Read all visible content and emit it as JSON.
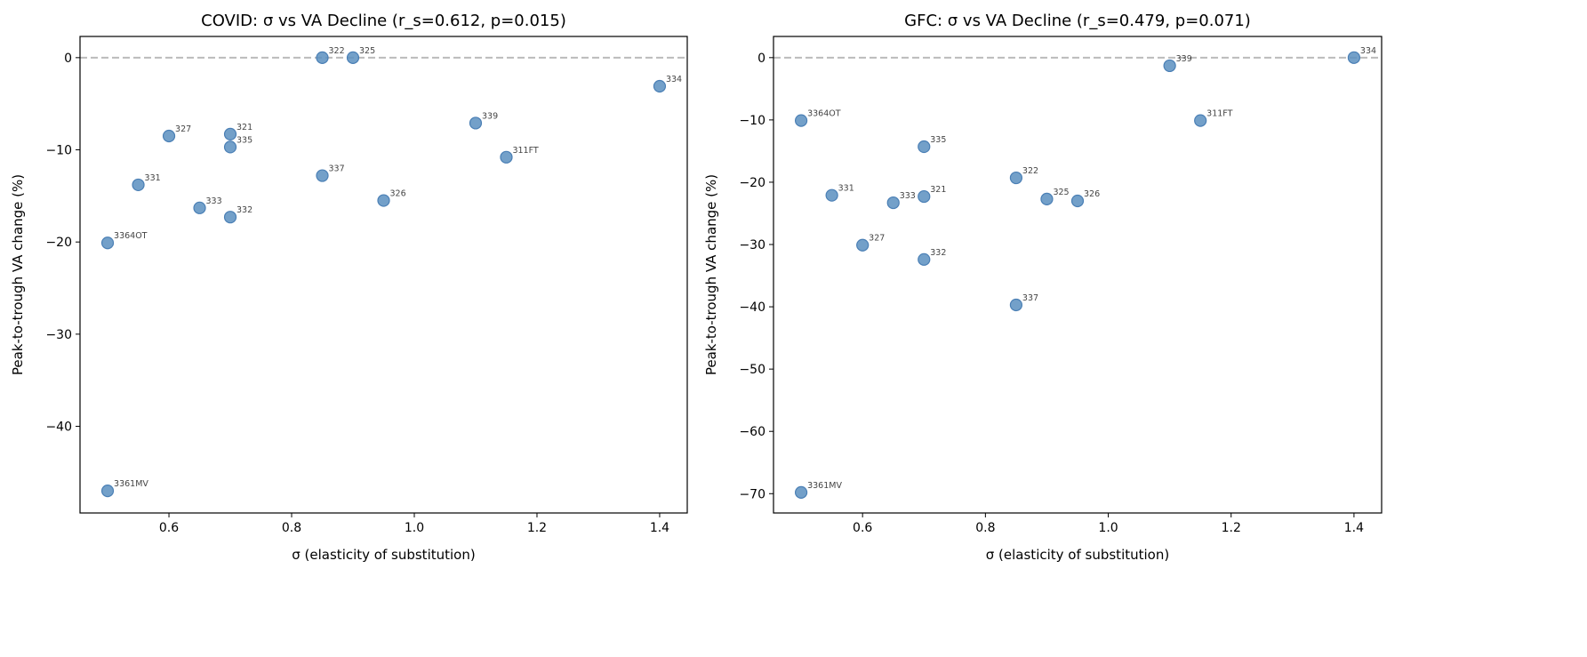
{
  "chart_data": [
    {
      "type": "scatter",
      "title": "COVID: σ vs VA Decline (r_s=0.612, p=0.015)",
      "xlabel": "σ (elasticity of substitution)",
      "ylabel": "Peak-to-trough VA change (%)",
      "xlim": [
        0.455,
        1.445
      ],
      "ylim": [
        -49.4,
        2.3
      ],
      "xticks": [
        0.6,
        0.8,
        1.0,
        1.2,
        1.4
      ],
      "xtick_labels": [
        "0.6",
        "0.8",
        "1.0",
        "1.2",
        "1.4"
      ],
      "yticks": [
        0,
        -10,
        -20,
        -30,
        -40
      ],
      "ytick_labels": [
        "0",
        "−10",
        "−20",
        "−30",
        "−40"
      ],
      "reference_line": {
        "y": 0,
        "style": "dashed",
        "color": "#bbbbbb"
      },
      "grid": false,
      "marker_color": "#5b8fc0",
      "points": [
        {
          "label": "322",
          "x": 0.85,
          "y": 0.0
        },
        {
          "label": "325",
          "x": 0.9,
          "y": 0.0
        },
        {
          "label": "334",
          "x": 1.4,
          "y": -3.1
        },
        {
          "label": "339",
          "x": 1.1,
          "y": -7.1
        },
        {
          "label": "327",
          "x": 0.6,
          "y": -8.5
        },
        {
          "label": "321",
          "x": 0.7,
          "y": -8.3
        },
        {
          "label": "335",
          "x": 0.7,
          "y": -9.7
        },
        {
          "label": "311FT",
          "x": 1.15,
          "y": -10.8
        },
        {
          "label": "331",
          "x": 0.55,
          "y": -13.8
        },
        {
          "label": "337",
          "x": 0.85,
          "y": -12.8
        },
        {
          "label": "326",
          "x": 0.95,
          "y": -15.5
        },
        {
          "label": "333",
          "x": 0.65,
          "y": -16.3
        },
        {
          "label": "332",
          "x": 0.7,
          "y": -17.3
        },
        {
          "label": "3364OT",
          "x": 0.5,
          "y": -20.1
        },
        {
          "label": "3361MV",
          "x": 0.5,
          "y": -47.0
        }
      ]
    },
    {
      "type": "scatter",
      "title": "GFC: σ vs VA Decline (r_s=0.479, p=0.071)",
      "xlabel": "σ (elasticity of substitution)",
      "ylabel": "Peak-to-trough VA change (%)",
      "xlim": [
        0.455,
        1.445
      ],
      "ylim": [
        -73.1,
        3.4
      ],
      "xticks": [
        0.6,
        0.8,
        1.0,
        1.2,
        1.4
      ],
      "xtick_labels": [
        "0.6",
        "0.8",
        "1.0",
        "1.2",
        "1.4"
      ],
      "yticks": [
        0,
        -10,
        -20,
        -30,
        -40,
        -50,
        -60,
        -70
      ],
      "ytick_labels": [
        "0",
        "−10",
        "−20",
        "−30",
        "−40",
        "−50",
        "−60",
        "−70"
      ],
      "reference_line": {
        "y": 0,
        "style": "dashed",
        "color": "#bbbbbb"
      },
      "grid": false,
      "marker_color": "#5b8fc0",
      "points": [
        {
          "label": "339",
          "x": 1.1,
          "y": -1.3
        },
        {
          "label": "334",
          "x": 1.4,
          "y": 0.0
        },
        {
          "label": "3364OT",
          "x": 0.5,
          "y": -10.1
        },
        {
          "label": "311FT",
          "x": 1.15,
          "y": -10.1
        },
        {
          "label": "335",
          "x": 0.7,
          "y": -14.3
        },
        {
          "label": "322",
          "x": 0.85,
          "y": -19.3
        },
        {
          "label": "331",
          "x": 0.55,
          "y": -22.1
        },
        {
          "label": "321",
          "x": 0.7,
          "y": -22.3
        },
        {
          "label": "333",
          "x": 0.65,
          "y": -23.3
        },
        {
          "label": "325",
          "x": 0.9,
          "y": -22.7
        },
        {
          "label": "326",
          "x": 0.95,
          "y": -23.0
        },
        {
          "label": "327",
          "x": 0.6,
          "y": -30.1
        },
        {
          "label": "332",
          "x": 0.7,
          "y": -32.4
        },
        {
          "label": "337",
          "x": 0.85,
          "y": -39.7
        },
        {
          "label": "3361MV",
          "x": 0.5,
          "y": -69.8
        }
      ]
    }
  ]
}
